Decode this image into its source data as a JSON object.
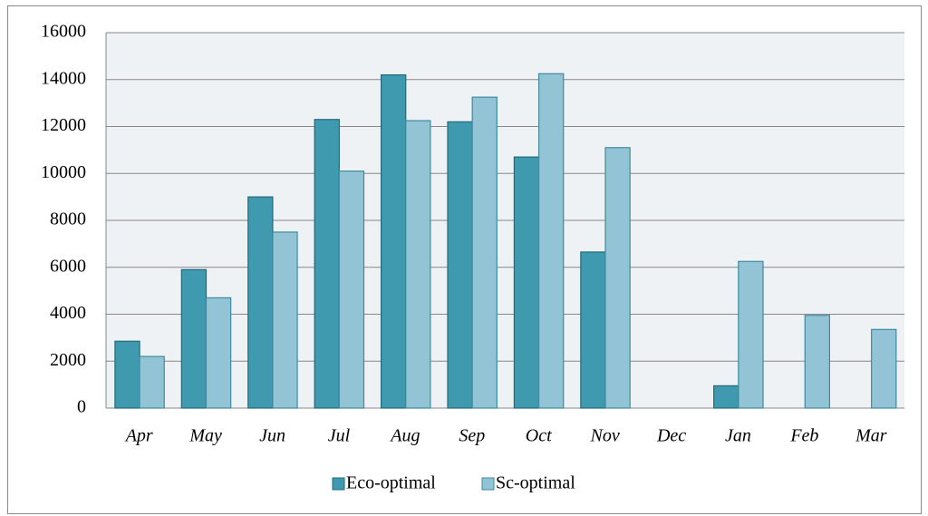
{
  "chart_data": {
    "type": "bar",
    "categories": [
      "Apr",
      "May",
      "Jun",
      "Jul",
      "Aug",
      "Sep",
      "Oct",
      "Nov",
      "Dec",
      "Jan",
      "Feb",
      "Mar"
    ],
    "series": [
      {
        "name": "Eco-optimal",
        "color": "#3f9ab0",
        "values": [
          2850,
          5900,
          9000,
          12300,
          14200,
          12200,
          10700,
          6650,
          0,
          950,
          0,
          0
        ]
      },
      {
        "name": "Sc-optimal",
        "color": "#93c4d5",
        "values": [
          2200,
          4700,
          7500,
          10100,
          12250,
          13250,
          14250,
          11100,
          0,
          6250,
          3950,
          3350
        ]
      }
    ],
    "ylim": [
      0,
      16000
    ],
    "yticks": [
      0,
      2000,
      4000,
      6000,
      8000,
      10000,
      12000,
      14000,
      16000
    ],
    "grid": true,
    "legend": "bottom"
  }
}
